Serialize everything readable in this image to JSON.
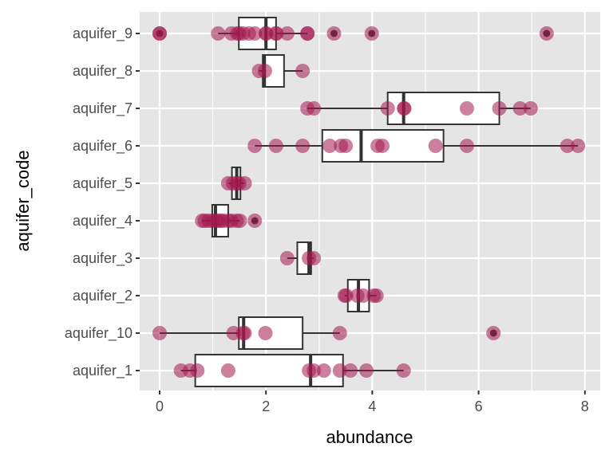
{
  "chart_data": {
    "type": "boxplot",
    "title": "",
    "xlabel": "abundance",
    "ylabel": "aquifer_code",
    "xlim": [
      -0.4,
      8.3
    ],
    "x_ticks": [
      0,
      2,
      4,
      6,
      8
    ],
    "x_tick_labels": [
      "0",
      "2",
      "4",
      "6",
      "8"
    ],
    "grid": true,
    "point_color": "#A3174F",
    "categories": [
      "aquifer_9",
      "aquifer_8",
      "aquifer_7",
      "aquifer_6",
      "aquifer_5",
      "aquifer_4",
      "aquifer_3",
      "aquifer_2",
      "aquifer_10",
      "aquifer_1"
    ],
    "series": [
      {
        "name": "aquifer_9",
        "box": {
          "lower_whisker": 1.1,
          "q1": 1.49,
          "median": 2.0,
          "q3": 2.19,
          "upper_whisker": 2.78
        },
        "outliers": [
          0,
          3.28,
          3.99,
          7.28
        ],
        "points": [
          0,
          0,
          1.1,
          1.35,
          1.46,
          1.5,
          1.57,
          1.68,
          1.79,
          2.0,
          2.0,
          2.18,
          2.2,
          2.4,
          2.78,
          2.78,
          3.28,
          3.99,
          7.28
        ]
      },
      {
        "name": "aquifer_8",
        "box": {
          "lower_whisker": 1.87,
          "q1": 1.94,
          "median": 1.97,
          "q3": 2.34,
          "upper_whisker": 2.69
        },
        "outliers": [],
        "points": [
          1.87,
          1.98,
          2.69
        ]
      },
      {
        "name": "aquifer_7",
        "box": {
          "lower_whisker": 2.78,
          "q1": 4.29,
          "median": 4.59,
          "q3": 6.39,
          "upper_whisker": 6.98
        },
        "outliers": [],
        "points": [
          2.78,
          2.9,
          4.29,
          4.6,
          4.6,
          5.78,
          6.39,
          6.78,
          6.98
        ]
      },
      {
        "name": "aquifer_6",
        "box": {
          "lower_whisker": 1.79,
          "q1": 3.06,
          "median": 3.79,
          "q3": 5.34,
          "upper_whisker": 7.87
        },
        "outliers": [],
        "points": [
          1.79,
          2.19,
          2.69,
          3.2,
          3.41,
          3.5,
          4.1,
          4.19,
          5.19,
          5.78,
          7.67,
          7.87
        ]
      },
      {
        "name": "aquifer_5",
        "box": {
          "lower_whisker": 1.29,
          "q1": 1.36,
          "median": 1.45,
          "q3": 1.52,
          "upper_whisker": 1.6
        },
        "outliers": [],
        "points": [
          1.29,
          1.38,
          1.45,
          1.5,
          1.6
        ]
      },
      {
        "name": "aquifer_4",
        "box": {
          "lower_whisker": 0.8,
          "q1": 0.99,
          "median": 1.05,
          "q3": 1.29,
          "upper_whisker": 1.51
        },
        "outliers": [
          1.79
        ],
        "points": [
          0.8,
          0.85,
          0.92,
          0.99,
          1.05,
          1.1,
          1.15,
          1.2,
          1.29,
          1.35,
          1.45,
          1.51,
          1.79
        ]
      },
      {
        "name": "aquifer_3",
        "box": {
          "lower_whisker": 2.4,
          "q1": 2.59,
          "median": 2.81,
          "q3": 2.85,
          "upper_whisker": 2.9
        },
        "outliers": [],
        "points": [
          2.4,
          2.81,
          2.9
        ]
      },
      {
        "name": "aquifer_2",
        "box": {
          "lower_whisker": 3.48,
          "q1": 3.54,
          "median": 3.74,
          "q3": 3.94,
          "upper_whisker": 4.08
        },
        "outliers": [],
        "points": [
          3.48,
          3.51,
          3.72,
          3.83,
          4.03,
          4.08
        ]
      },
      {
        "name": "aquifer_10",
        "box": {
          "lower_whisker": 0,
          "q1": 1.49,
          "median": 1.58,
          "q3": 2.69,
          "upper_whisker": 3.39
        },
        "outliers": [
          6.28
        ],
        "points": [
          0,
          1.39,
          1.57,
          1.6,
          1.99,
          3.39,
          6.28
        ]
      },
      {
        "name": "aquifer_1",
        "box": {
          "lower_whisker": 0.4,
          "q1": 0.67,
          "median": 2.84,
          "q3": 3.45,
          "upper_whisker": 4.59
        },
        "outliers": [],
        "points": [
          0.4,
          0.57,
          0.71,
          1.29,
          2.81,
          2.9,
          3.09,
          3.39,
          3.59,
          3.89,
          4.59
        ]
      }
    ]
  }
}
